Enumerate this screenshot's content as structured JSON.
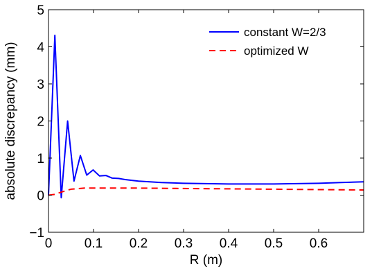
{
  "chart_data": {
    "type": "line",
    "title": "",
    "xlabel": "R (m)",
    "ylabel": "absolute discrepancy (mm)",
    "xlim": [
      0,
      0.7
    ],
    "ylim": [
      -1,
      5
    ],
    "xticks": [
      0,
      0.1,
      0.2,
      0.3,
      0.4,
      0.5,
      0.6
    ],
    "xtick_labels": [
      "0",
      "0.1",
      "0.2",
      "0.3",
      "0.4",
      "0.5",
      "0.6"
    ],
    "yticks": [
      -1,
      0,
      1,
      2,
      3,
      4,
      5
    ],
    "ytick_labels": [
      "−1",
      "0",
      "1",
      "2",
      "3",
      "4",
      "5"
    ],
    "grid": false,
    "legend_position": "top-right",
    "series": [
      {
        "name": "constant W=2/3",
        "color": "#0000ff",
        "style": "solid",
        "x": [
          0,
          0.0142,
          0.0283,
          0.0425,
          0.0566,
          0.0708,
          0.0849,
          0.0991,
          0.1132,
          0.1274,
          0.1415,
          0.1557,
          0.17,
          0.2,
          0.25,
          0.3,
          0.35,
          0.4,
          0.45,
          0.5,
          0.55,
          0.6,
          0.65,
          0.7
        ],
        "y": [
          0,
          4.31,
          -0.07,
          2.0,
          0.38,
          1.07,
          0.54,
          0.68,
          0.52,
          0.53,
          0.46,
          0.45,
          0.42,
          0.38,
          0.34,
          0.32,
          0.31,
          0.3,
          0.3,
          0.3,
          0.31,
          0.32,
          0.34,
          0.36
        ]
      },
      {
        "name": "optimized W",
        "color": "#ff0000",
        "style": "dashed",
        "x": [
          0,
          0.014,
          0.028,
          0.05,
          0.08,
          0.15,
          0.2,
          0.3,
          0.4,
          0.5,
          0.6,
          0.7
        ],
        "y": [
          0.0,
          0.02,
          0.08,
          0.16,
          0.19,
          0.19,
          0.19,
          0.18,
          0.17,
          0.16,
          0.15,
          0.14
        ]
      }
    ]
  }
}
